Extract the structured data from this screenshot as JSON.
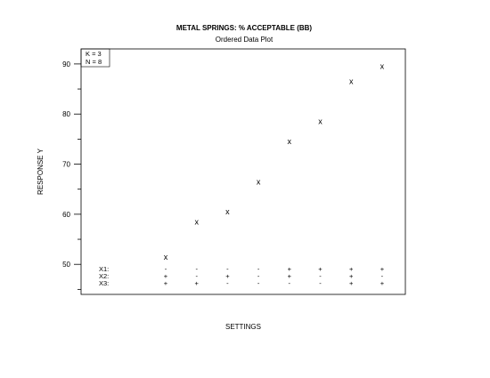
{
  "chart_data": {
    "type": "scatter",
    "title": "METAL SPRINGS: % ACCEPTABLE (BB)",
    "subtitle": "Ordered Data Plot",
    "xlabel": "SETTINGS",
    "ylabel": "RESPONSE Y",
    "ylim": [
      44,
      93
    ],
    "yticks": [
      "50",
      "60",
      "70",
      "80",
      "90"
    ],
    "marker": "x",
    "annotation": [
      "K = 3",
      "N = 8"
    ],
    "x": [
      1,
      2,
      3,
      4,
      5,
      6,
      7,
      8
    ],
    "values": [
      51.5,
      58.5,
      60.5,
      66.5,
      74.5,
      78.5,
      86.5,
      89.5
    ],
    "factor_labels": [
      "X1:",
      "X2:",
      "X3:"
    ],
    "settings": [
      [
        "-",
        "-",
        "-",
        "-",
        "+",
        "+",
        "+",
        "+"
      ],
      [
        "+",
        "-",
        "+",
        "-",
        "+",
        "-",
        "+",
        "-"
      ],
      [
        "+",
        "+",
        "-",
        "-",
        "-",
        "-",
        "+",
        "+"
      ]
    ],
    "grid": false
  }
}
